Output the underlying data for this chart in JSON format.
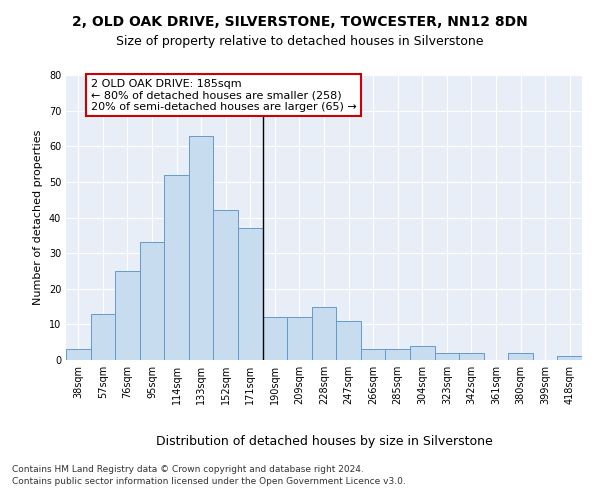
{
  "title1": "2, OLD OAK DRIVE, SILVERSTONE, TOWCESTER, NN12 8DN",
  "title2": "Size of property relative to detached houses in Silverstone",
  "xlabel": "Distribution of detached houses by size in Silverstone",
  "ylabel": "Number of detached properties",
  "categories": [
    "38sqm",
    "57sqm",
    "76sqm",
    "95sqm",
    "114sqm",
    "133sqm",
    "152sqm",
    "171sqm",
    "190sqm",
    "209sqm",
    "228sqm",
    "247sqm",
    "266sqm",
    "285sqm",
    "304sqm",
    "323sqm",
    "342sqm",
    "361sqm",
    "380sqm",
    "399sqm",
    "418sqm"
  ],
  "values": [
    3,
    13,
    25,
    33,
    52,
    63,
    42,
    37,
    12,
    12,
    15,
    11,
    3,
    3,
    4,
    2,
    2,
    0,
    2,
    0,
    1
  ],
  "bar_color": "#c8dcf0",
  "bar_edge_color": "#6699cc",
  "annotation_text": "2 OLD OAK DRIVE: 185sqm\n← 80% of detached houses are smaller (258)\n20% of semi-detached houses are larger (65) →",
  "annotation_box_color": "#ffffff",
  "annotation_box_edge": "#cc0000",
  "footnote1": "Contains HM Land Registry data © Crown copyright and database right 2024.",
  "footnote2": "Contains public sector information licensed under the Open Government Licence v3.0.",
  "ylim": [
    0,
    80
  ],
  "yticks": [
    0,
    10,
    20,
    30,
    40,
    50,
    60,
    70,
    80
  ],
  "bg_color": "#e8eef8",
  "fig_bg_color": "#ffffff",
  "title1_fontsize": 10,
  "title2_fontsize": 9,
  "xlabel_fontsize": 9,
  "ylabel_fontsize": 8,
  "tick_fontsize": 7,
  "annotation_fontsize": 8,
  "footnote_fontsize": 6.5
}
